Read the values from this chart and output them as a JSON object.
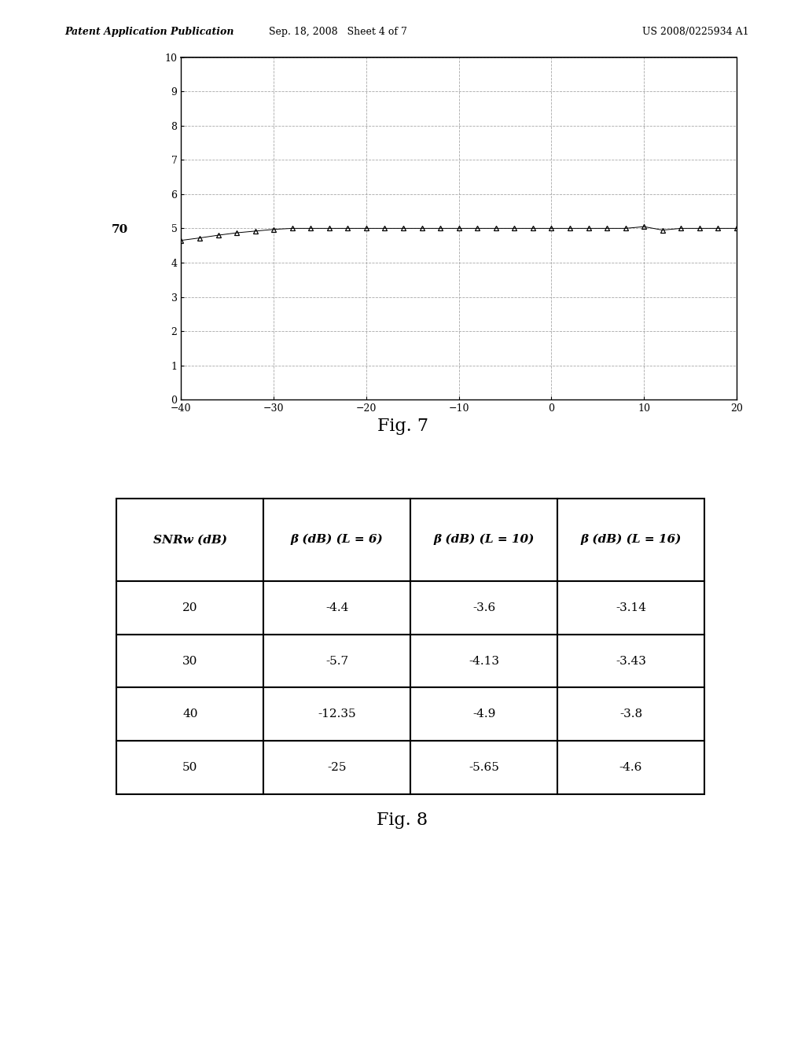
{
  "fig7": {
    "title": "Fig. 7",
    "xlim": [
      -40,
      20
    ],
    "ylim": [
      0,
      10
    ],
    "xticks": [
      -40,
      -30,
      -20,
      -10,
      0,
      10,
      20
    ],
    "yticks": [
      0,
      1,
      2,
      3,
      4,
      5,
      6,
      7,
      8,
      9,
      10
    ],
    "label_70": "70",
    "x_data": [
      -40,
      -38,
      -36,
      -34,
      -32,
      -30,
      -28,
      -26,
      -24,
      -22,
      -20,
      -18,
      -16,
      -14,
      -12,
      -10,
      -8,
      -6,
      -4,
      -2,
      0,
      2,
      4,
      6,
      8,
      10,
      12,
      14,
      16,
      18,
      20
    ],
    "y_data": [
      4.65,
      4.72,
      4.8,
      4.87,
      4.92,
      4.97,
      5.0,
      5.0,
      5.0,
      5.0,
      5.0,
      5.0,
      5.0,
      5.0,
      5.0,
      5.0,
      5.0,
      5.0,
      5.0,
      5.0,
      5.0,
      5.0,
      5.0,
      5.0,
      5.0,
      5.05,
      4.95,
      5.0,
      5.0,
      5.0,
      5.0
    ]
  },
  "fig8": {
    "title": "Fig. 8",
    "headers": [
      "SNRw (dB)",
      "β (dB) (L = 6)",
      "β (dB) (L = 10)",
      "β (dB) (L = 16)"
    ],
    "rows": [
      [
        "20",
        "-4.4",
        "-3.6",
        "-3.14"
      ],
      [
        "30",
        "-5.7",
        "-4.13",
        "-3.43"
      ],
      [
        "40",
        "-12.35",
        "-4.9",
        "-3.8"
      ],
      [
        "50",
        "-25",
        "-5.65",
        "-4.6"
      ]
    ]
  },
  "header_text": {
    "left": "Patent Application Publication",
    "mid": "Sep. 18, 2008   Sheet 4 of 7",
    "right": "US 2008/0225934 A1"
  },
  "bg_color": "#ffffff",
  "plot_bg": "#ffffff",
  "grid_color": "#999999",
  "line_color": "#000000",
  "marker_color": "#000000"
}
